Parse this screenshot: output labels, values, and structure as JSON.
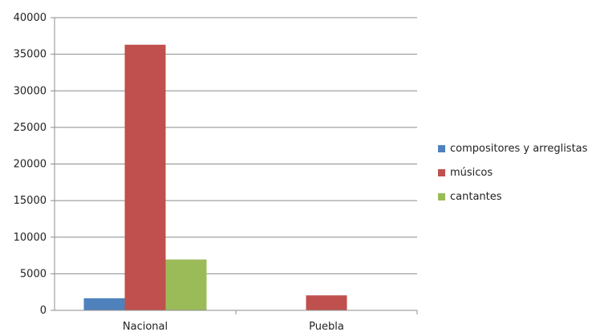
{
  "chart_data": {
    "type": "bar",
    "title": "",
    "xlabel": "",
    "ylabel": "",
    "categories": [
      "Nacional",
      "Puebla"
    ],
    "series": [
      {
        "name": "compositores y arreglistas",
        "color": "#4f81bd",
        "values": [
          1650,
          0
        ]
      },
      {
        "name": "músicos",
        "color": "#c0504d",
        "values": [
          36300,
          2050
        ]
      },
      {
        "name": "cantantes",
        "color": "#9bbb59",
        "values": [
          6950,
          0
        ]
      }
    ],
    "ylim": [
      0,
      40000
    ],
    "yticks": [
      0,
      5000,
      10000,
      15000,
      20000,
      25000,
      30000,
      35000,
      40000
    ],
    "grid": true,
    "legend_position": "right"
  }
}
